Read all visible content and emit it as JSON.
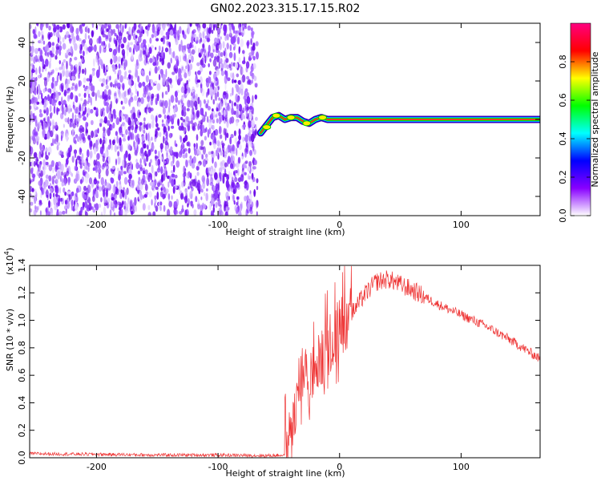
{
  "title": "GN02.2023.315.17.15.R02",
  "chart_data": [
    {
      "type": "heatmap",
      "xlabel": "Height of straight line (km)",
      "ylabel": "Frequency (Hz)",
      "xlim": [
        -255,
        165
      ],
      "ylim": [
        -50,
        50
      ],
      "x_ticks": [
        -200,
        -100,
        0,
        100
      ],
      "x_tick_labels": [
        "-200",
        "-100",
        "0",
        "100"
      ],
      "y_ticks": [
        -40,
        -20,
        0,
        20,
        40
      ],
      "y_tick_labels": [
        "-40",
        "-20",
        "0",
        "20",
        "40"
      ],
      "noise_region_x": [
        -255,
        -65
      ],
      "signal_track": [
        {
          "x": -65,
          "y": -7
        },
        {
          "x": -60,
          "y": -3
        },
        {
          "x": -55,
          "y": 1
        },
        {
          "x": -50,
          "y": 2
        },
        {
          "x": -45,
          "y": 0
        },
        {
          "x": -40,
          "y": 1
        },
        {
          "x": -35,
          "y": 1
        },
        {
          "x": -30,
          "y": -1
        },
        {
          "x": -25,
          "y": -2
        },
        {
          "x": -20,
          "y": 0
        },
        {
          "x": -15,
          "y": 1
        },
        {
          "x": -10,
          "y": 0
        },
        {
          "x": 165,
          "y": 0
        }
      ],
      "colorbar": {
        "label": "Normalized spectral amplitude",
        "range": [
          0,
          1
        ],
        "ticks": [
          0.0,
          0.2,
          0.4,
          0.6,
          0.8
        ],
        "tick_labels": [
          "0.0",
          "0.2",
          "0.4",
          "0.6",
          "0.8"
        ],
        "colors": [
          "#ffffff",
          "#8800ff",
          "#0000ff",
          "#00ffff",
          "#00ff00",
          "#ffff00",
          "#ff0000",
          "#ff0080"
        ]
      }
    },
    {
      "type": "line",
      "xlabel": "Height of straight line (km)",
      "ylabel": "SNR (10 * v/v)",
      "y_multiplier": "(x10",
      "y_multiplier_exp": "4",
      "y_multiplier_close": ")",
      "xlim": [
        -255,
        165
      ],
      "ylim": [
        0,
        1.4
      ],
      "x_ticks": [
        -200,
        -100,
        0,
        100
      ],
      "x_tick_labels": [
        "-200",
        "-100",
        "0",
        "100"
      ],
      "y_ticks": [
        0.0,
        0.2,
        0.4,
        0.6,
        0.8,
        1.0,
        1.2,
        1.4
      ],
      "y_tick_labels": [
        "0.0",
        "0.2",
        "0.4",
        "0.6",
        "0.8",
        "1.0",
        "1.2",
        "1.4"
      ],
      "color": "#ee3333",
      "envelope": [
        {
          "x": -255,
          "y": 0.03
        },
        {
          "x": -200,
          "y": 0.025
        },
        {
          "x": -150,
          "y": 0.02
        },
        {
          "x": -100,
          "y": 0.02
        },
        {
          "x": -60,
          "y": 0.015
        },
        {
          "x": -45,
          "y": 0.02
        },
        {
          "x": -40,
          "y": 0.15
        },
        {
          "x": -35,
          "y": 0.5
        },
        {
          "x": -30,
          "y": 0.6
        },
        {
          "x": -25,
          "y": 0.55
        },
        {
          "x": -20,
          "y": 0.65
        },
        {
          "x": -15,
          "y": 0.72
        },
        {
          "x": -10,
          "y": 0.8
        },
        {
          "x": -5,
          "y": 0.88
        },
        {
          "x": 0,
          "y": 0.95
        },
        {
          "x": 10,
          "y": 1.05
        },
        {
          "x": 20,
          "y": 1.18
        },
        {
          "x": 30,
          "y": 1.28
        },
        {
          "x": 40,
          "y": 1.3
        },
        {
          "x": 50,
          "y": 1.26
        },
        {
          "x": 60,
          "y": 1.22
        },
        {
          "x": 80,
          "y": 1.12
        },
        {
          "x": 100,
          "y": 1.04
        },
        {
          "x": 120,
          "y": 0.96
        },
        {
          "x": 140,
          "y": 0.86
        },
        {
          "x": 165,
          "y": 0.72
        }
      ]
    }
  ]
}
